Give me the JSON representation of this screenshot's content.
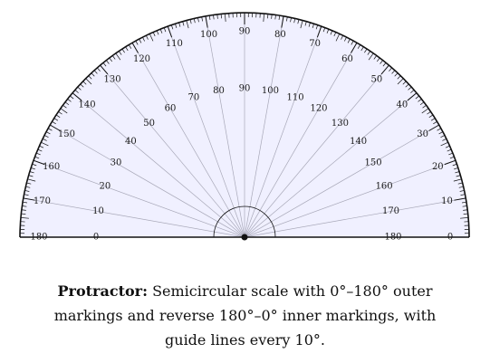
{
  "diagram": {
    "shape": "semicircle",
    "fill_color": "#f0f0ff",
    "range_deg": [
      0,
      180
    ],
    "guide_line_step_deg": 10,
    "outer_labels": [
      "0",
      "10",
      "20",
      "30",
      "40",
      "50",
      "60",
      "70",
      "80",
      "90",
      "100",
      "110",
      "120",
      "130",
      "140",
      "150",
      "160",
      "170",
      "180"
    ],
    "inner_labels": [
      "180",
      "170",
      "160",
      "150",
      "140",
      "130",
      "120",
      "110",
      "100",
      "90",
      "80",
      "70",
      "60",
      "50",
      "40",
      "30",
      "20",
      "10",
      "0"
    ]
  },
  "caption": {
    "title": "Protractor:",
    "text": "Semicircular scale with 0°–180° outer markings and reverse 180°–0° inner markings, with guide lines every 10°."
  }
}
